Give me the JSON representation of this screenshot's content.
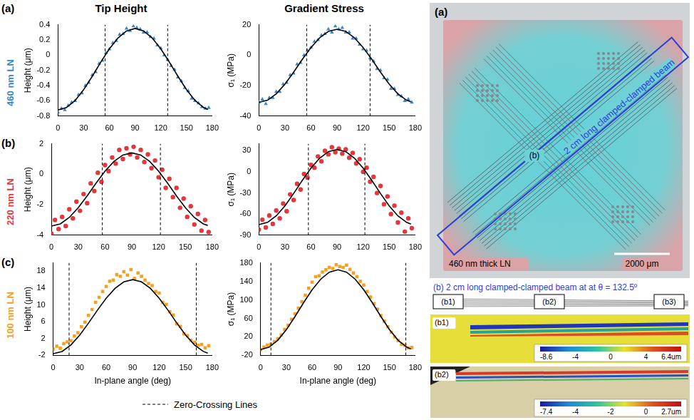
{
  "chart_data": [
    {
      "type": "scatter",
      "y_label": "Height (μm)",
      "xlim": [
        0,
        180
      ],
      "xticks": [
        0,
        30,
        60,
        90,
        120,
        150,
        180
      ],
      "ylim": [
        -0.8,
        0.4
      ],
      "yticks": [
        -0.8,
        -0.6,
        -0.4,
        -0.2,
        0,
        0.2,
        0.4
      ],
      "grid": false,
      "zero_crossings": [
        55,
        128
      ],
      "series": [
        {
          "type": "scatter",
          "color": "#3b86c6",
          "marker": "triangle",
          "x": [
            0,
            4,
            8,
            12,
            16,
            20,
            24,
            28,
            32,
            36,
            40,
            44,
            48,
            52,
            56,
            60,
            64,
            68,
            72,
            76,
            80,
            84,
            88,
            92,
            96,
            100,
            104,
            108,
            112,
            116,
            120,
            124,
            128,
            132,
            136,
            140,
            144,
            148,
            152,
            156,
            160,
            164,
            168,
            172,
            176
          ],
          "values": [
            -0.75,
            -0.7,
            -0.72,
            -0.66,
            -0.62,
            -0.6,
            -0.52,
            -0.5,
            -0.4,
            -0.36,
            -0.26,
            -0.22,
            -0.11,
            -0.07,
            0.03,
            0.08,
            0.16,
            0.19,
            0.27,
            0.28,
            0.35,
            0.32,
            0.38,
            0.36,
            0.34,
            0.3,
            0.3,
            0.24,
            0.22,
            0.13,
            0.09,
            0.0,
            -0.06,
            -0.14,
            -0.19,
            -0.29,
            -0.34,
            -0.43,
            -0.47,
            -0.57,
            -0.6,
            -0.63,
            -0.68,
            -0.7,
            -0.69
          ]
        },
        {
          "type": "line",
          "color": "#000000",
          "x": [
            0,
            10,
            20,
            30,
            40,
            50,
            60,
            70,
            80,
            90,
            100,
            110,
            120,
            130,
            140,
            150,
            160,
            170,
            175
          ],
          "values": [
            -0.72,
            -0.688,
            -0.595,
            -0.453,
            -0.278,
            -0.092,
            0.083,
            0.225,
            0.318,
            0.35,
            0.318,
            0.225,
            0.083,
            -0.092,
            -0.278,
            -0.453,
            -0.595,
            -0.688,
            -0.712
          ]
        }
      ]
    },
    {
      "type": "scatter",
      "y_label": "σ₁ (MPa)",
      "xlim": [
        0,
        180
      ],
      "xticks": [
        0,
        30,
        60,
        90,
        120,
        150,
        180
      ],
      "ylim": [
        -40,
        20
      ],
      "yticks": [
        -40,
        -20,
        0,
        20
      ],
      "grid": false,
      "zero_crossings": [
        55,
        128
      ],
      "series": [
        {
          "type": "scatter",
          "color": "#3b86c6",
          "marker": "triangle",
          "x": [
            0,
            4,
            8,
            12,
            16,
            20,
            24,
            28,
            32,
            36,
            40,
            44,
            48,
            52,
            56,
            60,
            64,
            68,
            72,
            76,
            80,
            84,
            88,
            92,
            96,
            100,
            104,
            108,
            112,
            116,
            120,
            124,
            128,
            132,
            136,
            140,
            144,
            148,
            152,
            156,
            160,
            164,
            168,
            172,
            176
          ],
          "values": [
            -31,
            -29,
            -32,
            -28,
            -28,
            -24,
            -24,
            -19,
            -18,
            -13,
            -12,
            -6,
            -5,
            0,
            3,
            5,
            9,
            10,
            13,
            14,
            17,
            15,
            19,
            17,
            18,
            15,
            15,
            11,
            11,
            7,
            4,
            3,
            -2,
            -4,
            -9,
            -10,
            -15,
            -16,
            -22,
            -22,
            -26,
            -27,
            -30,
            -29,
            -31
          ]
        },
        {
          "type": "line",
          "color": "#000000",
          "x": [
            0,
            10,
            20,
            30,
            40,
            50,
            60,
            70,
            80,
            90,
            100,
            110,
            120,
            130,
            140,
            150,
            160,
            170,
            175
          ],
          "values": [
            -31,
            -29.6,
            -25.4,
            -19,
            -11.2,
            -2.8,
            5,
            11.4,
            15.6,
            17,
            15.6,
            11.4,
            5,
            -2.8,
            -11.2,
            -19,
            -25.4,
            -29.6,
            -30.6
          ]
        }
      ]
    },
    {
      "type": "scatter",
      "y_label": "Height (μm)",
      "xlim": [
        0,
        180
      ],
      "xticks": [
        0,
        30,
        60,
        90,
        120,
        150,
        180
      ],
      "ylim": [
        -4,
        2
      ],
      "yticks": [
        -4,
        -2,
        0,
        2
      ],
      "grid": false,
      "zero_crossings": [
        57,
        122
      ],
      "series": [
        {
          "type": "scatter",
          "color": "#e0383c",
          "marker": "circle",
          "x": [
            0,
            4,
            8,
            12,
            16,
            20,
            24,
            28,
            32,
            36,
            40,
            44,
            48,
            52,
            56,
            60,
            64,
            68,
            72,
            76,
            80,
            84,
            88,
            92,
            96,
            100,
            104,
            108,
            112,
            116,
            120,
            124,
            128,
            132,
            136,
            140,
            144,
            148,
            152,
            156,
            160,
            164,
            168,
            172,
            176
          ],
          "values": [
            -3.9,
            -3.0,
            -3.6,
            -2.8,
            -3.4,
            -2.3,
            -2.9,
            -1.8,
            -2.4,
            -1.3,
            -1.9,
            -0.6,
            -1.1,
            0.1,
            -0.5,
            0.6,
            0.2,
            1.1,
            0.7,
            1.6,
            1.0,
            1.7,
            1.3,
            1.8,
            1.1,
            1.6,
            0.8,
            1.3,
            0.4,
            0.9,
            -0.2,
            0.3,
            -0.9,
            -0.3,
            -1.5,
            -0.9,
            -2.2,
            -1.6,
            -2.8,
            -2.1,
            -3.3,
            -2.6,
            -3.7,
            -3.0,
            -3.8
          ]
        },
        {
          "type": "line",
          "color": "#000000",
          "x": [
            0,
            10,
            20,
            30,
            40,
            50,
            60,
            70,
            80,
            90,
            100,
            110,
            120,
            130,
            140,
            150,
            160,
            170,
            175
          ],
          "values": [
            -3.4,
            -3.26,
            -2.84,
            -2.2,
            -1.42,
            -0.58,
            0.2,
            0.84,
            1.26,
            1.4,
            1.26,
            0.84,
            0.2,
            -0.58,
            -1.42,
            -2.2,
            -2.84,
            -3.26,
            -3.36
          ]
        }
      ]
    },
    {
      "type": "scatter",
      "y_label": "σ₁ (MPa)",
      "xlim": [
        0,
        180
      ],
      "xticks": [
        0,
        30,
        60,
        90,
        120,
        150,
        180
      ],
      "ylim": [
        -90,
        40
      ],
      "yticks": [
        -90,
        -60,
        -30,
        0,
        30
      ],
      "grid": false,
      "zero_crossings": [
        57,
        122
      ],
      "series": [
        {
          "type": "scatter",
          "color": "#e0383c",
          "marker": "circle",
          "x": [
            0,
            4,
            8,
            12,
            16,
            20,
            24,
            28,
            32,
            36,
            40,
            44,
            48,
            52,
            56,
            60,
            64,
            68,
            72,
            76,
            80,
            84,
            88,
            92,
            96,
            100,
            104,
            108,
            112,
            116,
            120,
            124,
            128,
            132,
            136,
            140,
            144,
            148,
            152,
            156,
            160,
            164,
            168,
            172,
            176
          ],
          "values": [
            -82,
            -68,
            -79,
            -62,
            -74,
            -55,
            -66,
            -45,
            -56,
            -32,
            -40,
            -17,
            -25,
            -3,
            -8,
            10,
            6,
            22,
            15,
            30,
            25,
            35,
            28,
            33,
            26,
            32,
            20,
            27,
            12,
            18,
            0,
            6,
            -14,
            -7,
            -30,
            -20,
            -46,
            -35,
            -60,
            -48,
            -72,
            -58,
            -85,
            -66,
            -80
          ]
        },
        {
          "type": "line",
          "color": "#000000",
          "x": [
            0,
            10,
            20,
            30,
            40,
            50,
            60,
            70,
            80,
            90,
            100,
            110,
            120,
            130,
            140,
            150,
            160,
            170,
            175
          ],
          "values": [
            -75,
            -71.8,
            -62.5,
            -48.3,
            -30.8,
            -12.2,
            5.3,
            19.5,
            28.8,
            32,
            28.8,
            19.5,
            5.3,
            -12.2,
            -30.8,
            -48.3,
            -62.5,
            -71.8,
            -74.2
          ]
        }
      ]
    },
    {
      "type": "scatter",
      "y_label": "Height (μm)",
      "x_label": "In-plane angle (deg)",
      "xlim": [
        0,
        180
      ],
      "xticks": [
        0,
        30,
        60,
        90,
        120,
        150,
        180
      ],
      "ylim": [
        -2,
        20
      ],
      "yticks": [
        -2,
        2,
        6,
        10,
        14,
        18
      ],
      "grid": false,
      "zero_crossings": [
        18,
        162
      ],
      "series": [
        {
          "type": "scatter",
          "color": "#f5a020",
          "marker": "square",
          "x": [
            0,
            4,
            8,
            12,
            16,
            20,
            24,
            28,
            32,
            36,
            40,
            44,
            48,
            52,
            56,
            60,
            64,
            68,
            72,
            76,
            80,
            84,
            88,
            92,
            96,
            100,
            104,
            108,
            112,
            116,
            120,
            124,
            128,
            132,
            136,
            140,
            144,
            148,
            152,
            156,
            160,
            164,
            168,
            172,
            176
          ],
          "values": [
            -0.5,
            0.2,
            -0.3,
            0.8,
            1.2,
            1.5,
            2.6,
            3.4,
            4.8,
            5.9,
            7.5,
            8.9,
            10.6,
            11.8,
            13.2,
            14.4,
            15.6,
            15.9,
            17.2,
            16.8,
            17.9,
            17.1,
            18.4,
            16.3,
            17.6,
            16.8,
            15.9,
            15.1,
            14.6,
            13.2,
            12.8,
            10.6,
            10.1,
            8.4,
            7.6,
            5.5,
            4.9,
            3.1,
            2.7,
            1.6,
            1.1,
            0.4,
            0.6,
            -0.2,
            0.3
          ]
        },
        {
          "type": "line",
          "color": "#000000",
          "x": [
            0,
            10,
            20,
            30,
            40,
            50,
            60,
            70,
            80,
            90,
            100,
            110,
            120,
            130,
            140,
            150,
            160,
            170,
            175
          ],
          "values": [
            -1.6,
            -1.07,
            0.46,
            2.8,
            5.67,
            8.73,
            11.6,
            13.94,
            15.47,
            16,
            15.47,
            13.94,
            11.6,
            8.73,
            5.67,
            2.8,
            0.46,
            -1.07,
            -1.47
          ]
        }
      ]
    },
    {
      "type": "scatter",
      "y_label": "σ₁ (MPa)",
      "x_label": "In-plane angle (deg)",
      "xlim": [
        0,
        180
      ],
      "xticks": [
        0,
        30,
        60,
        90,
        120,
        150,
        180
      ],
      "ylim": [
        -20,
        180
      ],
      "yticks": [
        -20,
        20,
        60,
        100,
        140,
        180
      ],
      "grid": false,
      "zero_crossings": [
        12,
        169
      ],
      "series": [
        {
          "type": "scatter",
          "color": "#f5a020",
          "marker": "square",
          "x": [
            0,
            4,
            8,
            12,
            16,
            20,
            24,
            28,
            32,
            36,
            40,
            44,
            48,
            52,
            56,
            60,
            64,
            68,
            72,
            76,
            80,
            84,
            88,
            92,
            96,
            100,
            104,
            108,
            112,
            116,
            120,
            124,
            128,
            132,
            136,
            140,
            144,
            148,
            152,
            156,
            160,
            164,
            168,
            172,
            176
          ],
          "values": [
            -8,
            -2,
            2,
            4,
            10,
            16,
            24,
            36,
            45,
            58,
            70,
            82,
            96,
            110,
            125,
            138,
            150,
            152,
            160,
            165,
            170,
            168,
            176,
            172,
            170,
            175,
            166,
            158,
            150,
            140,
            132,
            118,
            106,
            92,
            80,
            66,
            54,
            42,
            30,
            20,
            12,
            4,
            2,
            -4,
            -3
          ]
        },
        {
          "type": "line",
          "color": "#000000",
          "x": [
            0,
            10,
            20,
            30,
            40,
            50,
            60,
            70,
            80,
            90,
            100,
            110,
            120,
            130,
            140,
            150,
            160,
            170,
            175
          ],
          "values": [
            -7.4,
            -2.2,
            12.8,
            35.7,
            63.8,
            93.8,
            121.9,
            144.8,
            159.8,
            165,
            159.8,
            144.8,
            121.9,
            93.8,
            63.8,
            35.7,
            12.8,
            -2.2,
            -6.1
          ]
        }
      ]
    }
  ],
  "figure": {
    "columns": [
      "Tip Height",
      "Gradient Stress"
    ],
    "rows": [
      {
        "panel": "(a)",
        "label": "460 nm LN",
        "color": "#3b86c6"
      },
      {
        "panel": "(b)",
        "label": "220 nm LN",
        "color": "#e0383c"
      },
      {
        "panel": "(c)",
        "label": "100 nm LN",
        "color": "#f5a020"
      }
    ],
    "legend_label": "Zero-Crossing Lines",
    "photo": {
      "panel": "(a)",
      "beam_label": "2 cm long clamped-clamped beam",
      "beam_panel": "(b)",
      "sample_label": "460 nm thick LN",
      "scale_bar": "2000 μm"
    },
    "profile": {
      "panel": "(b)",
      "title": "2 cm long clamped-clamped beam at at θ = 132.5º",
      "boxes": [
        "(b1)",
        "(b2)",
        "(b3)"
      ],
      "insets": [
        {
          "panel": "(b1)",
          "colorbar": [
            "-8.6",
            "-4",
            "0",
            "4",
            "6.4um"
          ]
        },
        {
          "panel": "(b2)",
          "colorbar": [
            "-7.4",
            "-4",
            "-2",
            "0",
            "2.7um"
          ]
        }
      ]
    }
  }
}
